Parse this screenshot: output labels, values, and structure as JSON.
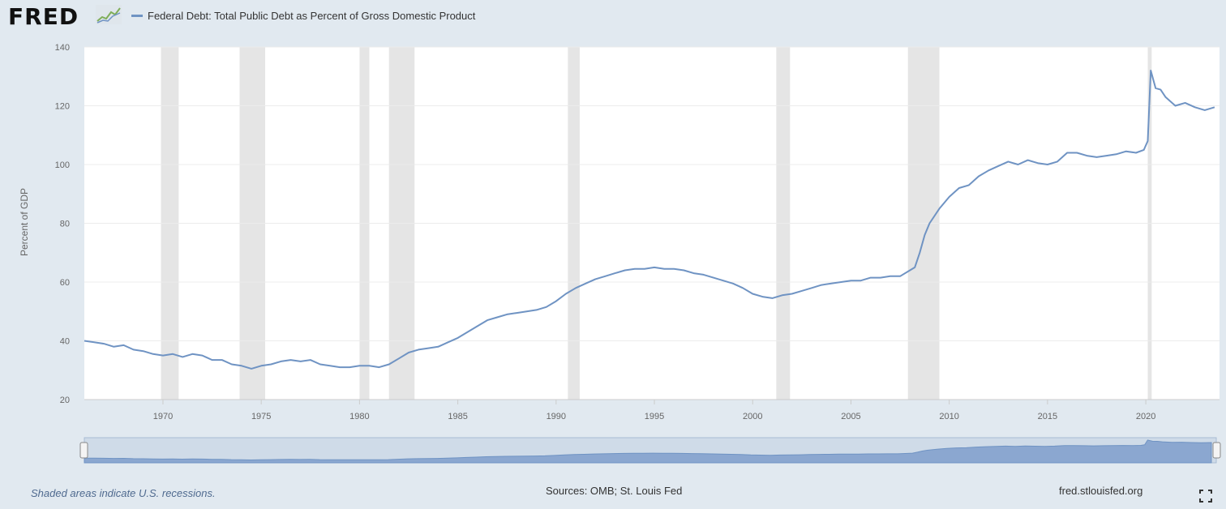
{
  "header": {
    "logo_text": "FRED",
    "logo_icon": "fred-graph-icon",
    "legend_label": "Federal Debt: Total Public Debt as Percent of Gross Domestic Product"
  },
  "footer": {
    "recession_note": "Shaded areas indicate U.S. recessions.",
    "sources": "Sources: OMB; St. Louis Fed",
    "url": "fred.stlouisfed.org",
    "fullscreen_icon": "fullscreen-icon"
  },
  "colors": {
    "line": "#6f93c3",
    "recession": "#e5e5e5",
    "background": "#e1e9f0",
    "plot": "#ffffff"
  },
  "chart_data": {
    "type": "line",
    "title": "Federal Debt: Total Public Debt as Percent of Gross Domestic Product",
    "xlabel": "",
    "ylabel": "Percent of GDP",
    "xlim": [
      1966.0,
      2023.75
    ],
    "ylim": [
      20,
      140
    ],
    "yticks": [
      20,
      40,
      60,
      80,
      100,
      120,
      140
    ],
    "xticks": [
      1970,
      1975,
      1980,
      1985,
      1990,
      1995,
      2000,
      2005,
      2010,
      2015,
      2020
    ],
    "grid": true,
    "legend_position": "top-left",
    "recessions": [
      [
        1969.9,
        1970.8
      ],
      [
        1973.9,
        1975.2
      ],
      [
        1980.0,
        1980.5
      ],
      [
        1981.5,
        1982.8
      ],
      [
        1990.6,
        1991.2
      ],
      [
        2001.2,
        2001.9
      ],
      [
        2007.9,
        2009.5
      ],
      [
        2020.1,
        2020.3
      ]
    ],
    "series": [
      {
        "name": "Federal Debt: Total Public Debt as Percent of Gross Domestic Product",
        "x": [
          1966.0,
          1966.5,
          1967.0,
          1967.5,
          1968.0,
          1968.5,
          1969.0,
          1969.5,
          1970.0,
          1970.5,
          1971.0,
          1971.5,
          1972.0,
          1972.5,
          1973.0,
          1973.5,
          1974.0,
          1974.5,
          1975.0,
          1975.5,
          1976.0,
          1976.5,
          1977.0,
          1977.5,
          1978.0,
          1978.5,
          1979.0,
          1979.5,
          1980.0,
          1980.5,
          1981.0,
          1981.5,
          1982.0,
          1982.5,
          1983.0,
          1983.5,
          1984.0,
          1984.5,
          1985.0,
          1985.5,
          1986.0,
          1986.5,
          1987.0,
          1987.5,
          1988.0,
          1988.5,
          1989.0,
          1989.5,
          1990.0,
          1990.5,
          1991.0,
          1991.5,
          1992.0,
          1992.5,
          1993.0,
          1993.5,
          1994.0,
          1994.5,
          1995.0,
          1995.5,
          1996.0,
          1996.5,
          1997.0,
          1997.5,
          1998.0,
          1998.5,
          1999.0,
          1999.5,
          2000.0,
          2000.5,
          2001.0,
          2001.5,
          2002.0,
          2002.5,
          2003.0,
          2003.5,
          2004.0,
          2004.5,
          2005.0,
          2005.5,
          2006.0,
          2006.5,
          2007.0,
          2007.5,
          2008.0,
          2008.25,
          2008.5,
          2008.75,
          2009.0,
          2009.5,
          2010.0,
          2010.5,
          2011.0,
          2011.5,
          2012.0,
          2012.5,
          2013.0,
          2013.5,
          2014.0,
          2014.5,
          2015.0,
          2015.5,
          2016.0,
          2016.5,
          2017.0,
          2017.5,
          2018.0,
          2018.5,
          2019.0,
          2019.5,
          2019.9,
          2020.0,
          2020.1,
          2020.25,
          2020.5,
          2020.75,
          2021.0,
          2021.5,
          2022.0,
          2022.5,
          2023.0,
          2023.5
        ],
        "values": [
          40,
          39.5,
          39,
          38,
          38.5,
          37,
          36.5,
          35.5,
          35,
          35.5,
          34.5,
          35.5,
          35,
          33.5,
          33.5,
          32,
          31.5,
          30.5,
          31.5,
          32,
          33,
          33.5,
          33,
          33.5,
          32,
          31.5,
          31,
          31,
          31.5,
          31.5,
          31,
          32,
          34,
          36,
          37,
          37.5,
          38,
          39.5,
          41,
          43,
          45,
          47,
          48,
          49,
          49.5,
          50,
          50.5,
          51.5,
          53.5,
          56,
          58,
          59.5,
          61,
          62,
          63,
          64,
          64.5,
          64.5,
          65,
          64.5,
          64.5,
          64,
          63,
          62.5,
          61.5,
          60.5,
          59.5,
          58,
          56,
          55,
          54.5,
          55.5,
          56,
          57,
          58,
          59,
          59.5,
          60,
          60.5,
          60.5,
          61.5,
          61.5,
          62,
          62,
          64,
          65,
          70,
          76,
          80,
          85,
          89,
          92,
          93,
          96,
          98,
          99.5,
          101,
          100,
          101.5,
          100.5,
          100,
          101,
          104,
          104,
          103,
          102.5,
          103,
          103.5,
          104.5,
          104,
          105,
          106.5,
          108,
          132,
          126,
          125.5,
          123,
          120,
          121,
          119.5,
          118.5,
          119.5
        ]
      }
    ]
  }
}
